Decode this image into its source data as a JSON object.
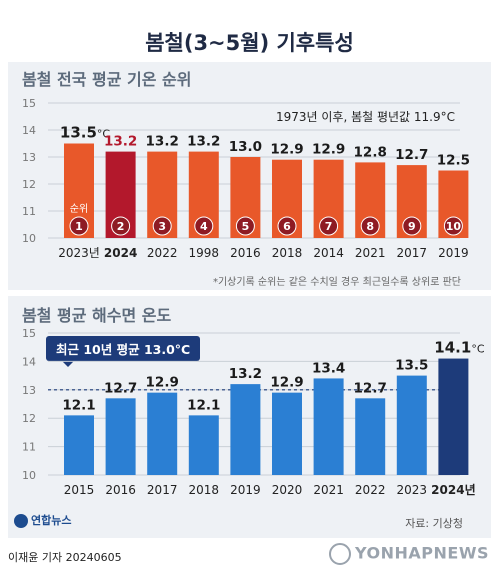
{
  "title": "봄철(3~5월) 기후특성",
  "chart_data": [
    {
      "type": "bar",
      "title": "봄철 전국 평균 기온 순위",
      "subtitle": "1973년 이후, 봄철 평년값 11.9°C",
      "categories": [
        "2023년",
        "2024",
        "2022",
        "1998",
        "2016",
        "2018",
        "2014",
        "2021",
        "2017",
        "2019"
      ],
      "values": [
        13.5,
        13.2,
        13.2,
        13.2,
        13.0,
        12.9,
        12.9,
        12.8,
        12.7,
        12.5
      ],
      "value_labels": [
        "13.5",
        "13.2",
        "13.2",
        "13.2",
        "13.0",
        "12.9",
        "12.9",
        "12.8",
        "12.7",
        "12.5"
      ],
      "unit": "°C",
      "ranks": [
        "1",
        "2",
        "3",
        "4",
        "5",
        "6",
        "7",
        "8",
        "9",
        "10"
      ],
      "rank_label": "순위",
      "highlight_index": 1,
      "ylim": [
        10,
        15
      ],
      "yticks": [
        10,
        11,
        12,
        13,
        14,
        15
      ],
      "grid": true,
      "footnote": "*기상기록 순위는 같은 수치일 경우 최근일수록 상위로 판단"
    },
    {
      "type": "bar",
      "title": "봄철 평균 해수면 온도",
      "categories": [
        "2015",
        "2016",
        "2017",
        "2018",
        "2019",
        "2020",
        "2021",
        "2022",
        "2023",
        "2024년"
      ],
      "values": [
        12.1,
        12.7,
        12.9,
        12.1,
        13.2,
        12.9,
        13.4,
        12.7,
        13.5,
        14.1
      ],
      "value_labels": [
        "12.1",
        "12.7",
        "12.9",
        "12.1",
        "13.2",
        "12.9",
        "13.4",
        "12.7",
        "13.5",
        "14.1"
      ],
      "unit": "°C",
      "highlight_index": 9,
      "reference_line": {
        "value": 13.0,
        "label": "최근 10년 평균 13.0°C"
      },
      "ylim": [
        10,
        15
      ],
      "yticks": [
        10,
        11,
        12,
        13,
        14,
        15
      ],
      "grid": true
    }
  ],
  "colors": {
    "bar_orange": "#e8582a",
    "bar_highlight_red": "#b3182c",
    "rank_circle": "#8e1b23",
    "bar_blue": "#2b7fd3",
    "bar_highlight_navy": "#1d3b7a",
    "panel": "#eef1f5"
  },
  "footer": {
    "logo": "연합뉴스",
    "source": "자료: 기상청",
    "byline": "이재윤 기자  20240605",
    "watermark": "YONHAPNEWS"
  }
}
